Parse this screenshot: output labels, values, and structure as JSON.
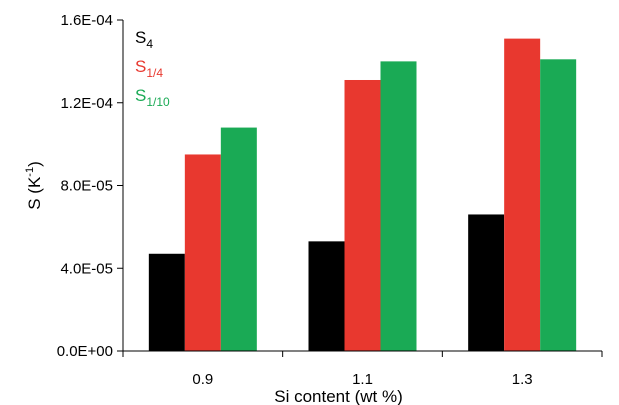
{
  "chart_data": {
    "type": "bar",
    "categories": [
      "0.9",
      "1.1",
      "1.3"
    ],
    "series": [
      {
        "name_main": "S",
        "name_sub": "4",
        "color": "#000000",
        "values": [
          4.7e-05,
          5.3e-05,
          6.6e-05
        ]
      },
      {
        "name_main": "S",
        "name_sub": "1/4",
        "color": "#e8382f",
        "values": [
          9.5e-05,
          0.000131,
          0.000151
        ]
      },
      {
        "name_main": "S",
        "name_sub": "1/10",
        "color": "#1aaa55",
        "values": [
          0.000108,
          0.00014,
          0.000141
        ]
      }
    ],
    "xlabel": "Si content (wt %)",
    "ylabel_main": "S (K",
    "ylabel_sup": "-1",
    "ylabel_end": ")",
    "ylim": [
      0,
      0.00016
    ],
    "yticks": [
      0,
      4e-05,
      8e-05,
      0.00012,
      0.00016
    ],
    "ytick_labels": [
      "0.0E+00",
      "4.0E-05",
      "8.0E-05",
      "1.2E-04",
      "1.6E-04"
    ],
    "grid": false,
    "legend_position": "top-left"
  }
}
